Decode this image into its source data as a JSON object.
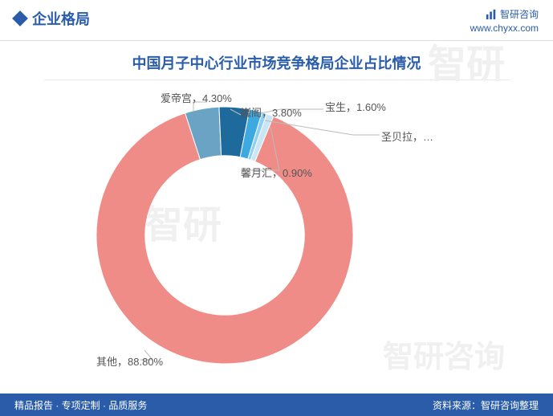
{
  "header": {
    "section_title": "企业格局",
    "brand": "智研咨询",
    "url": "www.chyxx.com"
  },
  "chart": {
    "type": "donut",
    "title": "中国月子中心行业市场竞争格局企业占比情况",
    "title_color": "#2a5caa",
    "title_fontsize": 18,
    "background_color": "#ffffff",
    "inner_radius_ratio": 0.62,
    "slices": [
      {
        "name": "爱帝宫",
        "value": 4.3,
        "color": "#6aa3c4",
        "label": "爱帝宫，4.30%"
      },
      {
        "name": "巍阁",
        "value": 3.8,
        "color": "#1e6a9c",
        "label": "巍阁，3.80%"
      },
      {
        "name": "宝生",
        "value": 1.6,
        "color": "#3da9e0",
        "label": "宝生，1.60%"
      },
      {
        "name": "圣贝拉",
        "value": 0.6,
        "color": "#8ed0f0",
        "label": "圣贝拉，…"
      },
      {
        "name": "馨月汇",
        "value": 0.9,
        "color": "#c9e6f5",
        "label": "馨月汇，0.90%"
      },
      {
        "name": "其他",
        "value": 88.8,
        "color": "#f08c87",
        "label": "其他，88.80%"
      }
    ],
    "label_fontsize": 13,
    "label_color": "#555555",
    "leader_color": "#bbbbbb"
  },
  "footer": {
    "left": "精品报告 · 专项定制 · 品质服务",
    "right": "资料来源：智研咨询整理"
  },
  "watermark_text": "智研"
}
